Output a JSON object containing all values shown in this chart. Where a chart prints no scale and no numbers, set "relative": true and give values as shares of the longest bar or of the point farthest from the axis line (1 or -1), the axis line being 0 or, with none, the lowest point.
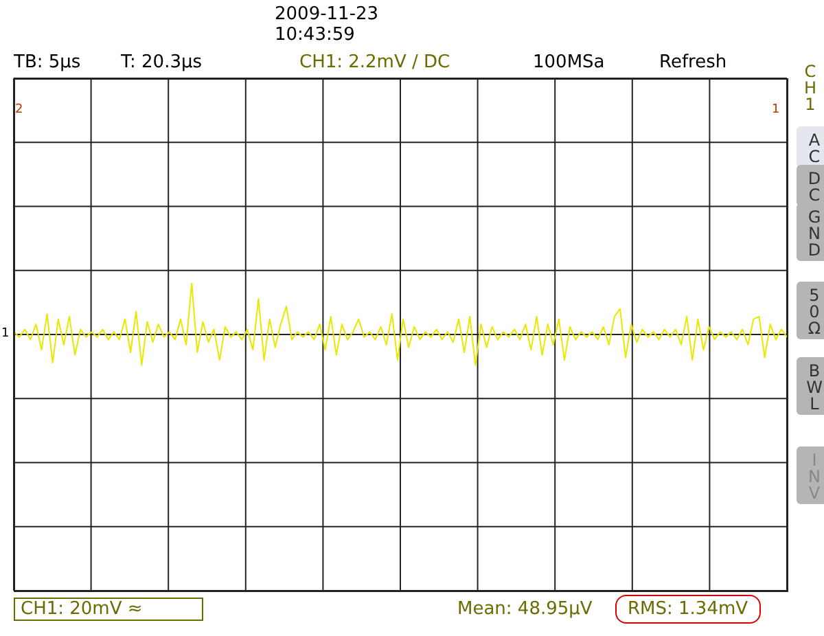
{
  "chart_data": {
    "type": "line",
    "relative": true,
    "grid": true,
    "marker": "none",
    "categories": [
      null,
      null,
      null,
      null,
      null,
      null,
      null,
      null,
      null,
      null,
      null,
      null,
      null,
      null,
      null,
      null,
      null,
      null,
      null,
      null,
      null,
      null,
      null,
      null,
      null,
      null,
      null,
      null,
      null,
      null,
      null,
      null,
      null,
      null,
      null,
      null,
      null,
      null,
      null,
      null,
      null,
      null,
      null,
      null,
      null,
      null,
      null,
      null,
      null,
      null,
      null,
      null,
      null,
      null,
      null,
      null,
      null,
      null,
      null,
      null,
      null,
      null,
      null,
      null,
      null,
      null,
      null,
      null,
      null,
      null,
      null,
      null,
      null,
      null,
      null,
      null,
      null,
      null,
      null,
      null,
      null,
      null,
      null,
      null,
      null,
      null,
      null,
      null,
      null,
      null,
      null,
      null,
      null,
      null,
      null,
      null,
      null,
      null,
      null,
      null,
      null,
      null,
      null,
      null,
      null,
      null,
      null,
      null,
      null,
      null,
      null,
      null,
      null,
      null,
      null,
      null,
      null,
      null,
      null,
      null,
      null,
      null,
      null,
      null,
      null,
      null,
      null,
      null,
      null,
      null,
      null,
      null,
      null,
      null,
      null,
      null,
      null,
      null,
      null,
      null
    ],
    "series": [
      {
        "color": "#e8e800",
        "values": [
          0.05,
          -0.05,
          0.1,
          -0.1,
          0.2,
          -0.3,
          0.4,
          -0.55,
          0.3,
          -0.2,
          0.35,
          -0.4,
          0.1,
          -0.05,
          0.05,
          -0.05,
          0.1,
          -0.1,
          0.05,
          -0.1,
          0.3,
          -0.35,
          0.45,
          -0.6,
          0.25,
          -0.15,
          0.2,
          -0.05,
          0.05,
          -0.1,
          0.3,
          -0.2,
          1,
          -0.35,
          0.25,
          -0.15,
          0.1,
          -0.5,
          0.15,
          -0.05,
          0.05,
          -0.1,
          0.1,
          -0.3,
          0.7,
          -0.5,
          0.3,
          -0.25,
          0.2,
          0.55,
          -0.1,
          0.05,
          -0.05,
          0.05,
          -0.1,
          0.2,
          -0.3,
          0.35,
          -0.4,
          0.2,
          -0.1,
          0.05,
          0.3,
          -0.05,
          0.05,
          -0.1,
          0.15,
          -0.2,
          0.4,
          -0.5,
          0.3,
          -0.25,
          0.15,
          -0.1,
          0.05,
          -0.05,
          0.1,
          -0.1,
          0.05,
          -0.15,
          0.3,
          -0.35,
          0.35,
          -0.6,
          0.2,
          -0.25,
          0.15,
          -0.1,
          0.05,
          -0.05,
          0.1,
          -0.1,
          0.2,
          -0.3,
          0.35,
          -0.4,
          0.2,
          -0.2,
          0.3,
          -0.5,
          0.15,
          -0.1,
          0.05,
          -0.05,
          0.05,
          -0.1,
          0.15,
          -0.2,
          0.35,
          0.5,
          -0.45,
          0.2,
          -0.15,
          0.1,
          -0.05,
          0.05,
          -0.1,
          0.1,
          -0.05,
          0.1,
          -0.2,
          0.35,
          -0.5,
          0.3,
          -0.3,
          0.15,
          -0.1,
          0.05,
          -0.05,
          0.05,
          -0.1,
          0.1,
          -0.2,
          0.3,
          0.35,
          -0.45,
          0.2,
          -0.1,
          0.1,
          -0.05
        ]
      }
    ],
    "annotations": [
      "2009-11-23",
      "10:43:59",
      "TB: 5µs",
      "T: 20.3µs",
      "CH1: 2.2mV / DC",
      "100MSa",
      "Refresh",
      "2",
      "1",
      "1",
      "CH1: 20mV ≈",
      "Mean: 48.95µV",
      "RMS: 1.34mV",
      "CH1",
      "AC",
      "DC",
      "GND",
      "50Ω",
      "BWL",
      "INV"
    ]
  }
}
